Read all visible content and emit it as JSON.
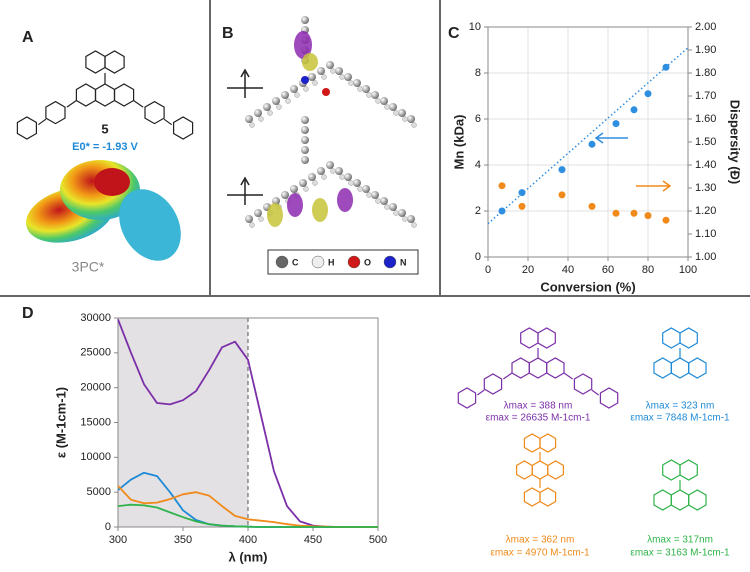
{
  "panels": {
    "A": {
      "label": "A",
      "compound": "5",
      "potential": "E0* = -1.93 V",
      "state": "3PC*"
    },
    "B": {
      "label": "B",
      "legend": [
        "C",
        "H",
        "O",
        "N"
      ]
    },
    "C": {
      "label": "C"
    },
    "D": {
      "label": "D",
      "compounds": [
        {
          "lambda": "λmax = 388 nm",
          "epsilon": "εmax = 26635 M-1cm-1",
          "color": "#7b2fa8"
        },
        {
          "lambda": "λmax = 323 nm",
          "epsilon": "εmax = 7848 M-1cm-1",
          "color": "#1e8ad6"
        },
        {
          "lambda": "λmax = 362 nm",
          "epsilon": "εmax = 4970 M-1cm-1",
          "color": "#f08a1a"
        },
        {
          "lambda": "λmax = 317nm",
          "epsilon": "εmax = 3163 M-1cm-1",
          "color": "#2fb34a"
        }
      ]
    }
  },
  "chart_data": [
    {
      "type": "scatter",
      "xlabel": "Conversion (%)",
      "ylabel": "Mn (kDa)",
      "y2label": "Dispersity (Đ)",
      "xlim": [
        0,
        100
      ],
      "xticks": [
        0,
        20,
        40,
        60,
        80,
        100
      ],
      "ylim": [
        0,
        10
      ],
      "yticks": [
        0,
        2,
        4,
        6,
        8,
        10
      ],
      "y2lim": [
        1,
        2
      ],
      "y2ticks": [
        {
          "value": 1,
          "label": "1.00"
        },
        {
          "value": 1.1,
          "label": "1.10"
        },
        {
          "value": 1.2,
          "label": "1.20"
        },
        {
          "value": 1.3,
          "label": "1.30"
        },
        {
          "value": 1.4,
          "label": "1.40"
        },
        {
          "value": 1.5,
          "label": "1.50"
        },
        {
          "value": 1.6,
          "label": "1.60"
        },
        {
          "value": 1.7,
          "label": "1.70"
        },
        {
          "value": 1.8,
          "label": "1.80"
        },
        {
          "value": 1.9,
          "label": "1.90"
        },
        {
          "value": 2,
          "label": "2.00"
        }
      ],
      "x": [
        7,
        17,
        37,
        52,
        64,
        73,
        80,
        89
      ],
      "series": [
        {
          "color": "#2e8ee0",
          "values": [
            2.0,
            2.8,
            3.8,
            4.9,
            5.8,
            6.4,
            7.1,
            8.25
          ]
        },
        {
          "color": "#f08a1a",
          "axis": "y2",
          "values": [
            1.31,
            1.22,
            1.27,
            1.22,
            1.19,
            1.19,
            1.18,
            1.16
          ]
        }
      ],
      "trendline": {
        "x": [
          0,
          100
        ],
        "values": [
          1.45,
          9.1
        ],
        "color": "#2e8ee0"
      }
    },
    {
      "type": "line",
      "xlabel": "λ (nm)",
      "ylabel": "ε (M-1cm-1)",
      "xlim": [
        300,
        500
      ],
      "xticks": [
        300,
        350,
        400,
        450,
        500
      ],
      "ylim": [
        0,
        30000
      ],
      "yticks": [
        0,
        5000,
        10000,
        15000,
        20000,
        25000,
        30000
      ],
      "shade": [
        300,
        400
      ],
      "x": [
        300,
        310,
        320,
        330,
        340,
        350,
        360,
        370,
        380,
        390,
        400,
        410,
        420,
        430,
        440,
        450,
        460,
        470,
        480,
        490,
        500
      ],
      "series": [
        {
          "color": "#7b2fa8",
          "values": [
            29800,
            25000,
            20500,
            17800,
            17600,
            18200,
            19500,
            22500,
            25800,
            26600,
            24000,
            16000,
            8000,
            3000,
            800,
            200,
            50,
            0,
            0,
            0,
            0
          ]
        },
        {
          "color": "#1e8ad6",
          "values": [
            5300,
            6800,
            7800,
            7300,
            5000,
            2400,
            1000,
            400,
            200,
            100,
            50,
            0,
            0,
            0,
            0,
            0,
            0,
            0,
            0,
            0,
            0
          ]
        },
        {
          "color": "#f08a1a",
          "values": [
            5900,
            3900,
            3400,
            3500,
            4000,
            4700,
            5000,
            4500,
            3000,
            1600,
            1100,
            900,
            700,
            400,
            200,
            100,
            50,
            0,
            0,
            0,
            0
          ]
        },
        {
          "color": "#2fb34a",
          "values": [
            3000,
            3200,
            3100,
            2800,
            2100,
            1400,
            800,
            400,
            200,
            100,
            50,
            0,
            0,
            0,
            0,
            0,
            0,
            0,
            0,
            0,
            0
          ]
        }
      ]
    }
  ]
}
